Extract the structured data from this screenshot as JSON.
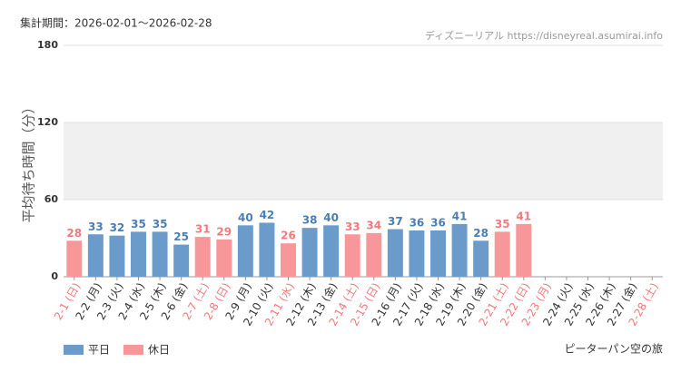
{
  "chart_data": {
    "type": "bar",
    "title": "集計期間：2026-02-01～2026-02-28",
    "source": "ディズニーリアル https://disneyreal.asumirai.info",
    "attraction": "ピーターパン空の旅",
    "y_label": "平均待ち時間（分）",
    "categories": [
      "2-1 (日)",
      "2-2 (月)",
      "2-3 (火)",
      "2-4 (水)",
      "2-5 (木)",
      "2-6 (金)",
      "2-7 (土)",
      "2-8 (日)",
      "2-9 (月)",
      "2-10 (火)",
      "2-11 (水)",
      "2-12 (木)",
      "2-13 (金)",
      "2-14 (土)",
      "2-15 (日)",
      "2-16 (月)",
      "2-17 (火)",
      "2-18 (水)",
      "2-19 (木)",
      "2-20 (金)",
      "2-21 (土)",
      "2-22 (日)",
      "2-23 (月)",
      "2-24 (火)",
      "2-25 (水)",
      "2-26 (木)",
      "2-27 (金)",
      "2-28 (土)"
    ],
    "category_colors": [
      "#f07a7e",
      "#333333",
      "#333333",
      "#333333",
      "#333333",
      "#333333",
      "#f07a7e",
      "#f07a7e",
      "#333333",
      "#333333",
      "#f07a7e",
      "#333333",
      "#333333",
      "#f07a7e",
      "#f07a7e",
      "#333333",
      "#333333",
      "#333333",
      "#333333",
      "#333333",
      "#f07a7e",
      "#f07a7e",
      "#f07a7e",
      "#333333",
      "#333333",
      "#333333",
      "#333333",
      "#f07a7e"
    ],
    "series": [
      {
        "name": "平日",
        "color": "#6b9bcb",
        "label_color": "#4a7fb5",
        "values": [
          null,
          33,
          32,
          35,
          35,
          25,
          null,
          null,
          40,
          42,
          null,
          38,
          40,
          null,
          null,
          37,
          36,
          36,
          41,
          28,
          null,
          null,
          null,
          null,
          null,
          null,
          null,
          null
        ]
      },
      {
        "name": "休日",
        "color": "#f7979a",
        "label_color": "#f07a7e",
        "values": [
          28,
          null,
          null,
          null,
          null,
          null,
          31,
          29,
          null,
          null,
          26,
          null,
          null,
          33,
          34,
          null,
          null,
          null,
          null,
          null,
          35,
          41,
          null,
          null,
          null,
          null,
          null,
          null
        ]
      }
    ],
    "ylim": [
      0,
      180
    ],
    "yticks": [
      0,
      60,
      120,
      180
    ],
    "grid": true,
    "shaded_range": [
      60,
      120
    ]
  }
}
